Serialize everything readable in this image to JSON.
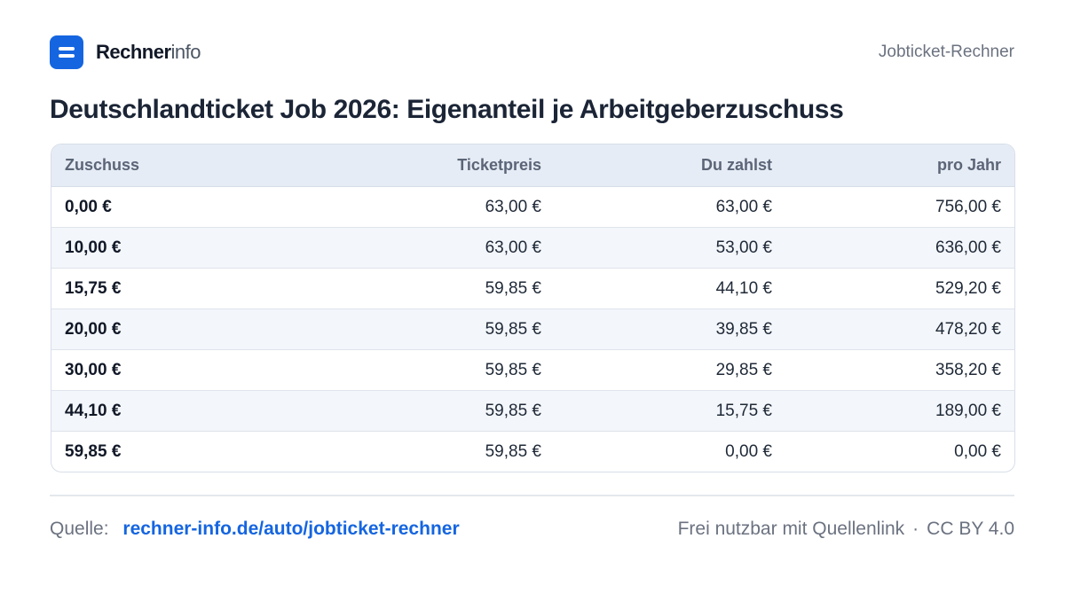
{
  "brand": {
    "name_strong": "Rechner",
    "name_light": "info",
    "accent_color": "#1565e0",
    "icon": "calculator-equals-icon"
  },
  "header": {
    "right_label": "Jobticket-Rechner"
  },
  "title": "Deutschlandticket Job 2026: Eigenanteil je Arbeitgeberzuschuss",
  "table": {
    "columns": [
      "Zuschuss",
      "Ticketpreis",
      "Du zahlst",
      "pro Jahr"
    ],
    "rows": [
      [
        "0,00 €",
        "63,00 €",
        "63,00 €",
        "756,00 €"
      ],
      [
        "10,00 €",
        "63,00 €",
        "53,00 €",
        "636,00 €"
      ],
      [
        "15,75 €",
        "59,85 €",
        "44,10 €",
        "529,20 €"
      ],
      [
        "20,00 €",
        "59,85 €",
        "39,85 €",
        "478,20 €"
      ],
      [
        "30,00 €",
        "59,85 €",
        "29,85 €",
        "358,20 €"
      ],
      [
        "44,10 €",
        "59,85 €",
        "15,75 €",
        "189,00 €"
      ],
      [
        "59,85 €",
        "59,85 €",
        "0,00 €",
        "0,00 €"
      ]
    ]
  },
  "footer": {
    "source_label": "Quelle:",
    "source_link": "rechner-info.de/auto/jobticket-rechner",
    "license_text": "Frei nutzbar mit Quellenlink",
    "separator": "·",
    "license_name": "CC BY 4.0"
  }
}
